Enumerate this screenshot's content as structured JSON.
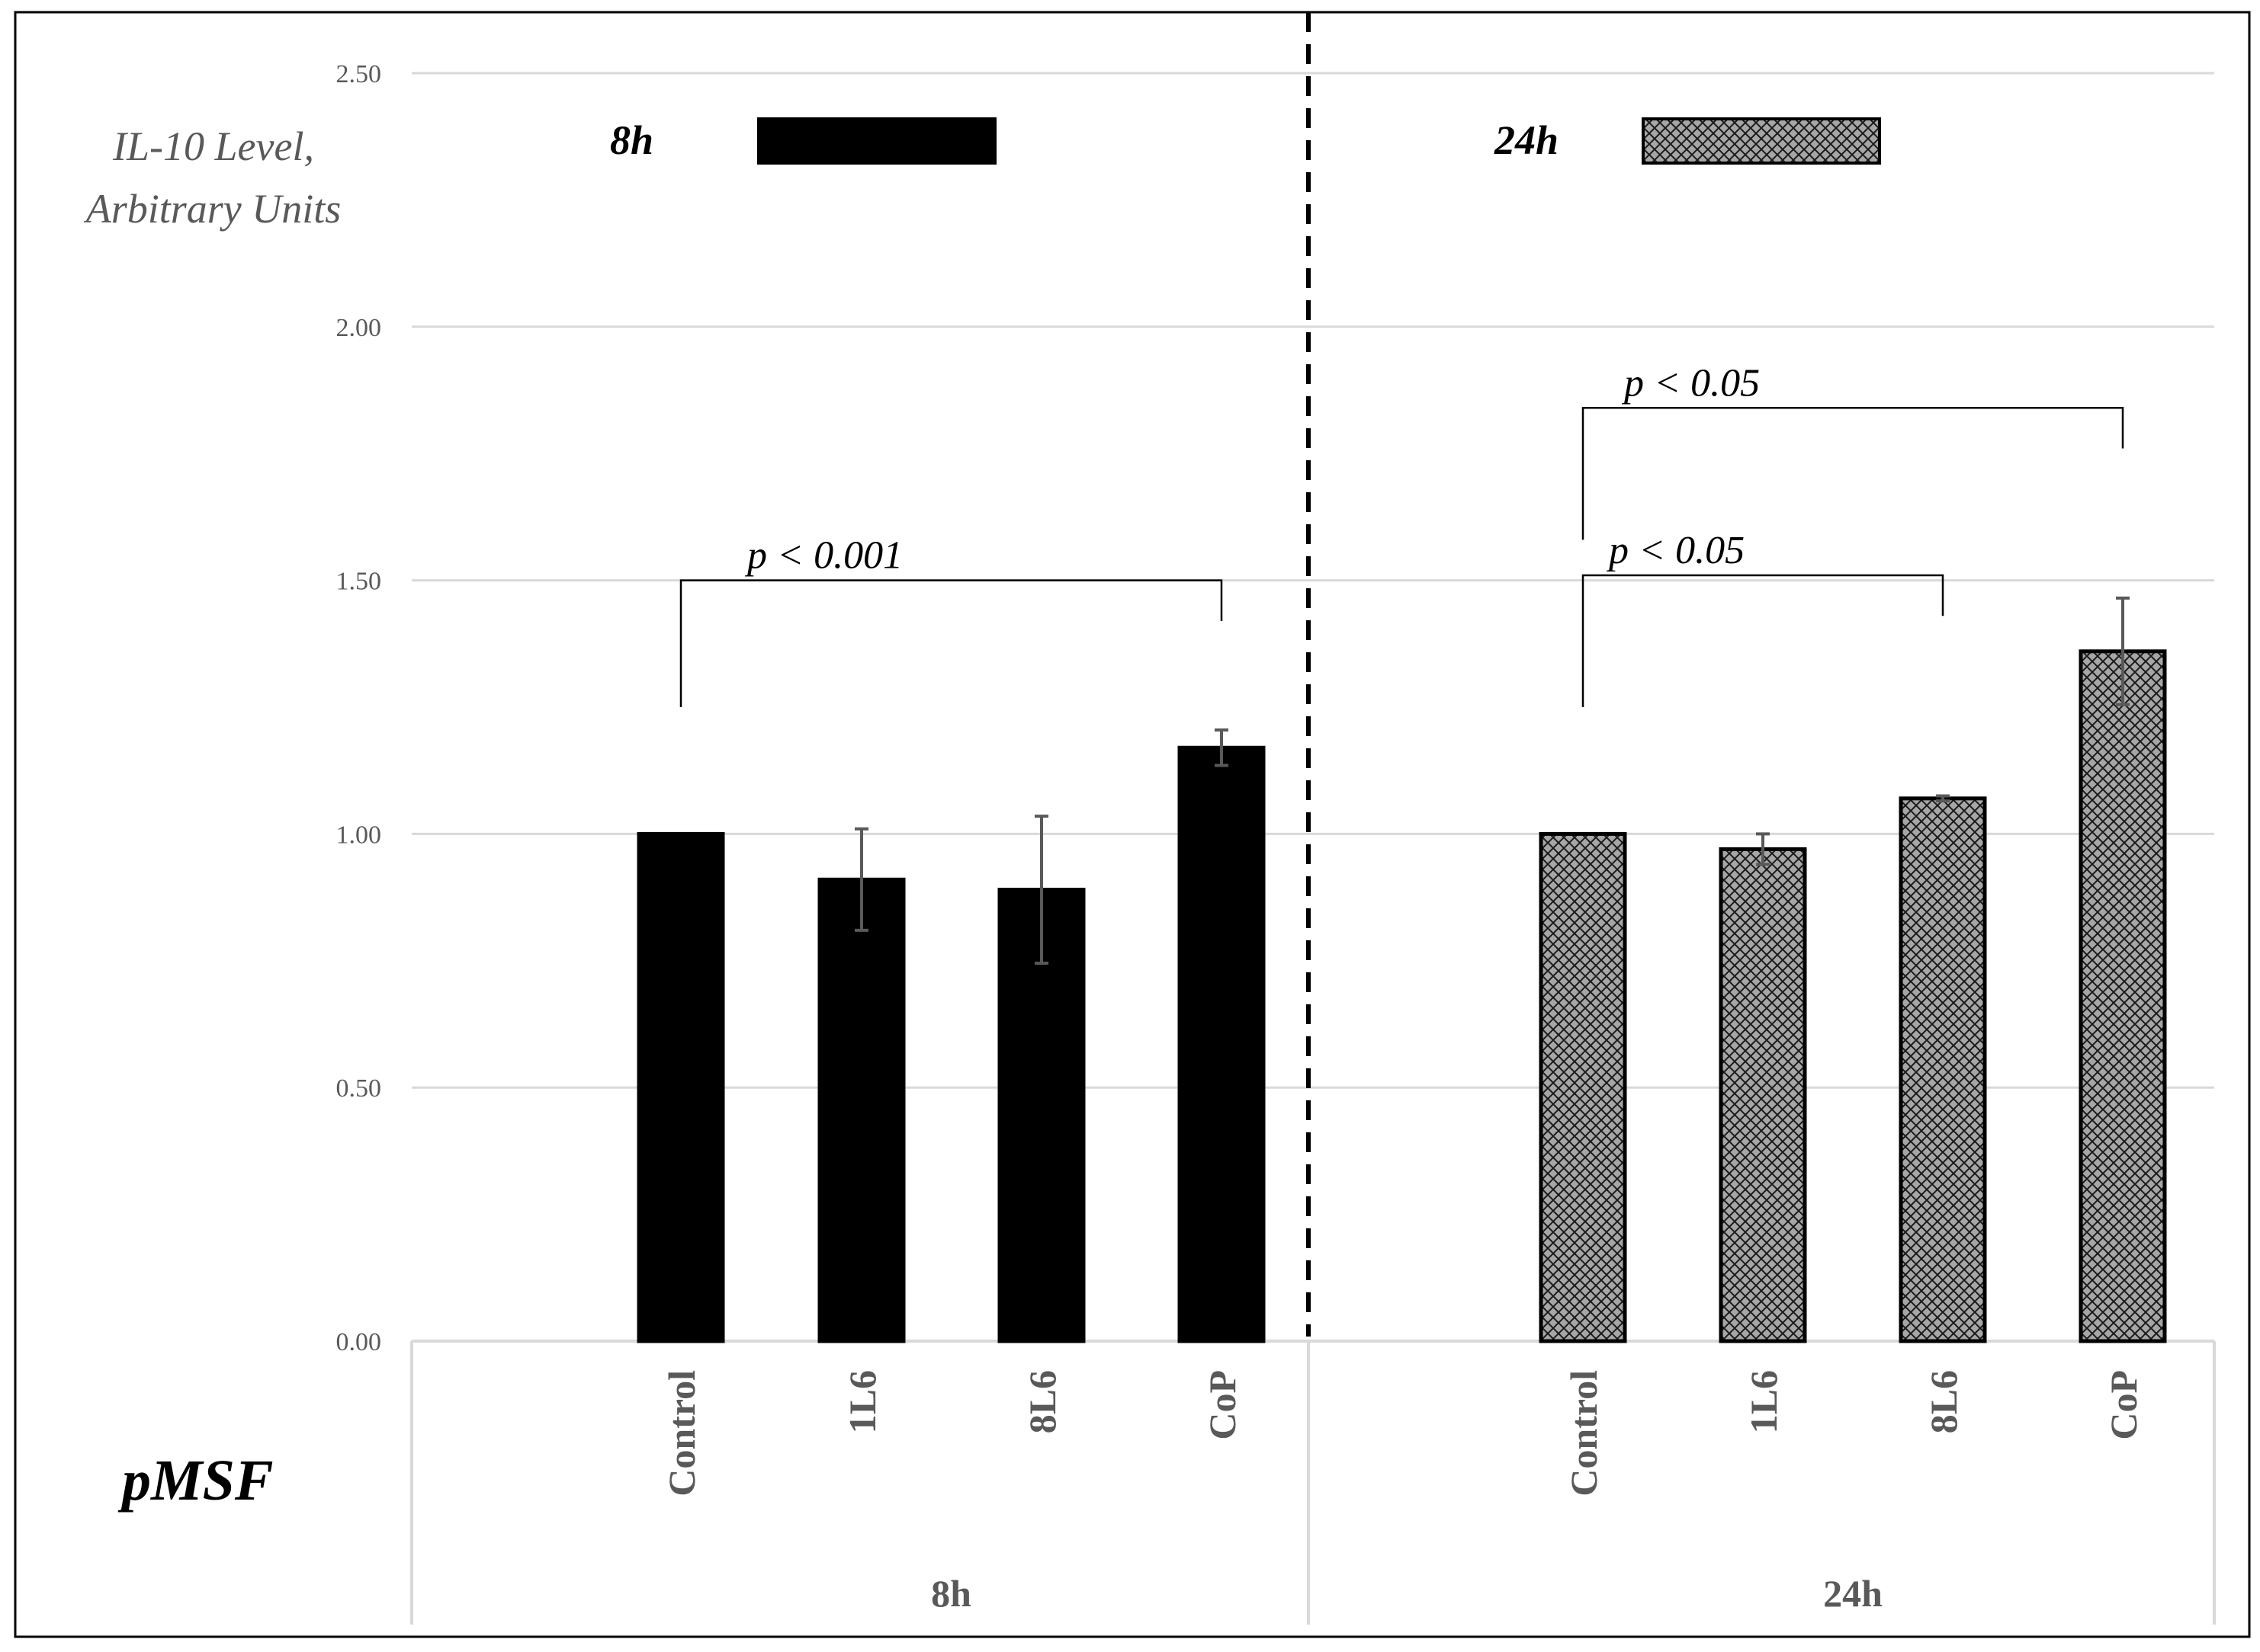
{
  "chart_data": {
    "type": "bar",
    "ylabel_lines": [
      "IL-10  Level,",
      "Arbitrary Units"
    ],
    "xtitle": "pMSF",
    "ylim": [
      0,
      2.5
    ],
    "yticks": [
      "0.00",
      "0.50",
      "1.00",
      "1.50",
      "2.00",
      "2.50"
    ],
    "grid": true,
    "legend_position": "top",
    "colors": {
      "solid": "#000000",
      "hatch_fill": "#a6a6a6",
      "grid": "#d9d9d9",
      "axis_text": "#595959"
    },
    "groups": [
      {
        "label": "8h",
        "legend_label": "8h",
        "pattern": "solid",
        "categories": [
          "Control",
          "1L6",
          "8L6",
          "CoP"
        ],
        "values": [
          1.0,
          0.91,
          0.89,
          1.17
        ],
        "errors": [
          0.0,
          0.1,
          0.145,
          0.035
        ]
      },
      {
        "label": "24h",
        "legend_label": "24h",
        "pattern": "crosshatch",
        "categories": [
          "Control",
          "1L6",
          "8L6",
          "CoP"
        ],
        "values": [
          1.0,
          0.97,
          1.07,
          1.36
        ],
        "errors": [
          0.0,
          0.03,
          0.005,
          0.105
        ]
      }
    ],
    "significance": [
      {
        "group": 0,
        "from": 0,
        "to": 3,
        "label": "p < 0.001",
        "y": 1.5
      },
      {
        "group": 1,
        "from": 0,
        "to": 2,
        "label": "p < 0.05",
        "y": 1.51
      },
      {
        "group": 1,
        "from": 0,
        "to": 3,
        "label": "p < 0.05",
        "y": 1.84
      }
    ]
  }
}
